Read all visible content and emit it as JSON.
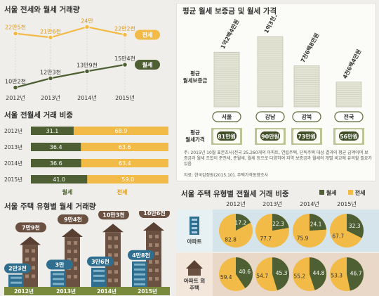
{
  "chart_data": [
    {
      "type": "line",
      "title": "서울 전세와 월세 거래량",
      "categories": [
        "2012년",
        "2013년",
        "2014년",
        "2015년"
      ],
      "series": [
        {
          "name": "전세",
          "labels": [
            "22만5천",
            "21만6천",
            "24만",
            "22만2천"
          ],
          "values": [
            225000,
            216000,
            240000,
            222000
          ]
        },
        {
          "name": "월세",
          "labels": [
            "10만2천",
            "12만3천",
            "13만9천",
            "15만4천"
          ],
          "values": [
            102000,
            123000,
            139000,
            154000
          ]
        }
      ],
      "colors": {
        "jeonse": "#f2bb47",
        "wolse": "#4e5f33"
      }
    },
    {
      "type": "bar",
      "title": "서울 전월세 거래 비중",
      "categories": [
        "2012년",
        "2013년",
        "2014년",
        "2015년"
      ],
      "series": [
        {
          "name": "월세",
          "values": [
            31.1,
            36.4,
            36.6,
            41.0
          ],
          "labels": [
            "31.1",
            "36.4",
            "36.6",
            "41.0"
          ]
        },
        {
          "name": "전세",
          "values": [
            68.9,
            63.6,
            63.4,
            59.0
          ],
          "labels": [
            "68.9",
            "63.6",
            "63.4",
            "59.0"
          ]
        }
      ]
    },
    {
      "type": "bar",
      "title": "서울 주택 유형별 월세 거래량",
      "categories": [
        "2012년",
        "2013년",
        "2014년",
        "2015년"
      ],
      "series": [
        {
          "name": "아파트",
          "values": [
            23000,
            30000,
            36000,
            48000
          ],
          "labels": [
            "2만3천",
            "3만",
            "3만6천",
            "4만8천"
          ]
        },
        {
          "name": "아파트 외 주택",
          "values": [
            79000,
            94000,
            103000,
            106000
          ],
          "labels": [
            "7만9천",
            "9만4천",
            "10만3천",
            "10만6천"
          ]
        }
      ]
    },
    {
      "type": "bar",
      "title": "평균 월세 보증금 및 월세 가격",
      "categories": [
        "서울",
        "강남",
        "강북",
        "전국"
      ],
      "series": [
        {
          "name": "평균 월세보증금",
          "values": [
            10240000,
            13160000,
            7680000,
            4640000
          ],
          "labels": [
            "1억2백4만원",
            "1억3천1백6만원",
            "7천6백8만원",
            "4천6백4만원"
          ]
        },
        {
          "name": "평균 월세가격",
          "values": [
            810000,
            900000,
            730000,
            560000
          ],
          "labels": [
            "81만원",
            "90만원",
            "73만원",
            "56만원"
          ]
        }
      ],
      "side_labels": {
        "deposit": [
          "평균",
          "월세보증금"
        ],
        "rent": [
          "평균",
          "월세가격"
        ]
      },
      "note": "주: 2015년 10월 표본조사(전국 25,260개의 아파트, 연립주택, 단독주택 대상 결과의 평균 금액이며 보증금과 월세 조합이 준전세, 준월세, 월세 등으로 다양하여 지역 보증금과 월세의 개별 비교에 유의할 필요가 있음",
      "source": "자료: 한국감정원(2015.10), 주택가격동향조사"
    },
    {
      "type": "pie",
      "title": "서울 주택 유형별 전월세 거래 비중",
      "legend": [
        "월세",
        "전세"
      ],
      "categories": [
        "2012년",
        "2013년",
        "2014년",
        "2015년"
      ],
      "rows": [
        {
          "name": "아파트",
          "wolse": [
            17.2,
            22.3,
            24.1,
            32.3
          ],
          "jeonse": [
            82.8,
            77.7,
            75.9,
            67.7
          ]
        },
        {
          "name": "아파트 외 주택",
          "wolse": [
            40.6,
            45.3,
            44.8,
            46.7
          ],
          "jeonse": [
            59.4,
            54.7,
            55.2,
            53.3
          ]
        }
      ]
    }
  ]
}
